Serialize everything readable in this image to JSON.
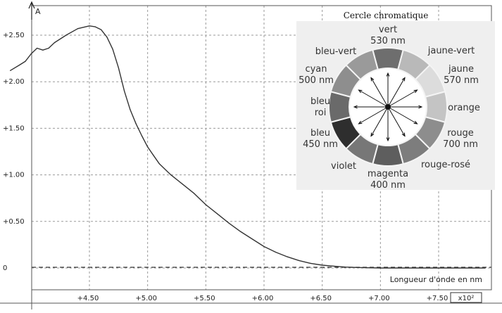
{
  "chart_data": {
    "type": "line",
    "ylabel": "A",
    "xlabel": "Longueur d'onde en nm",
    "x_multiplier": "x10²",
    "xlim": [
      3.8,
      8.0
    ],
    "ylim": [
      -0.2,
      2.75
    ],
    "xticks": [
      "4.50",
      "5.00",
      "5.50",
      "6.00",
      "6.50",
      "7.00",
      "7.50"
    ],
    "xtick_values": [
      4.5,
      5.0,
      5.5,
      6.0,
      6.5,
      7.0,
      7.5
    ],
    "yticks": [
      "+2.50",
      "+2.00",
      "+1.50",
      "+1.00",
      "+0.50",
      "0"
    ],
    "ytick_values": [
      2.5,
      2.0,
      1.5,
      1.0,
      0.5,
      0.0
    ],
    "grid": true,
    "series": [
      {
        "x": [
          3.82,
          3.9,
          3.95,
          4.0,
          4.05,
          4.1,
          4.15,
          4.2,
          4.3,
          4.4,
          4.5,
          4.55,
          4.6,
          4.65,
          4.7,
          4.75,
          4.8,
          4.85,
          4.9,
          4.95,
          5.0,
          5.05,
          5.1,
          5.2,
          5.3,
          5.4,
          5.5,
          5.6,
          5.7,
          5.8,
          5.9,
          6.0,
          6.1,
          6.2,
          6.3,
          6.4,
          6.5,
          6.6,
          6.7,
          6.8,
          7.0,
          7.2,
          7.5,
          7.9
        ],
        "y": [
          2.12,
          2.18,
          2.22,
          2.3,
          2.36,
          2.34,
          2.36,
          2.42,
          2.5,
          2.57,
          2.6,
          2.59,
          2.56,
          2.48,
          2.35,
          2.15,
          1.9,
          1.7,
          1.55,
          1.42,
          1.3,
          1.21,
          1.12,
          1.0,
          0.9,
          0.8,
          0.68,
          0.58,
          0.48,
          0.39,
          0.31,
          0.23,
          0.17,
          0.12,
          0.08,
          0.05,
          0.03,
          0.02,
          0.01,
          0.005,
          0.0,
          0.0,
          0.0,
          0.0
        ]
      }
    ]
  },
  "wheel": {
    "title": "Cercle chromatique",
    "segments": [
      {
        "label": "vert 530 nm",
        "color": "#6e6e6e"
      },
      {
        "label": "jaune-vert",
        "color": "#b9b9b9"
      },
      {
        "label": "jaune 570 nm",
        "color": "#dcdcdc"
      },
      {
        "label": "orange",
        "color": "#c4c4c4"
      },
      {
        "label": "rouge 700 nm",
        "color": "#8d8d8d"
      },
      {
        "label": "rouge-rosé",
        "color": "#7d7d7d"
      },
      {
        "label": "magenta 400 nm",
        "color": "#5e5e5e"
      },
      {
        "label": "violet",
        "color": "#777777"
      },
      {
        "label": "bleu 450 nm",
        "color": "#2e2e2e"
      },
      {
        "label": "bleu roi",
        "color": "#6a6a6a"
      },
      {
        "label": "cyan 500 nm",
        "color": "#8e8e8e"
      },
      {
        "label": "bleu-vert",
        "color": "#9a9a9a"
      }
    ],
    "labels": {
      "vert": [
        "vert",
        "530 nm"
      ],
      "jaune_vert": [
        "jaune-vert"
      ],
      "bleu_vert": [
        "bleu-vert"
      ],
      "cyan": [
        "cyan",
        "500 nm"
      ],
      "jaune": [
        "jaune",
        "570 nm"
      ],
      "bleu_roi": [
        "bleu",
        "roi"
      ],
      "orange": [
        "orange"
      ],
      "bleu": [
        "bleu",
        "450 nm"
      ],
      "rouge": [
        "rouge",
        "700 nm"
      ],
      "violet": [
        "violet"
      ],
      "rouge_rose": [
        "rouge-rosé"
      ],
      "magenta": [
        "magenta",
        "400 nm"
      ]
    }
  }
}
